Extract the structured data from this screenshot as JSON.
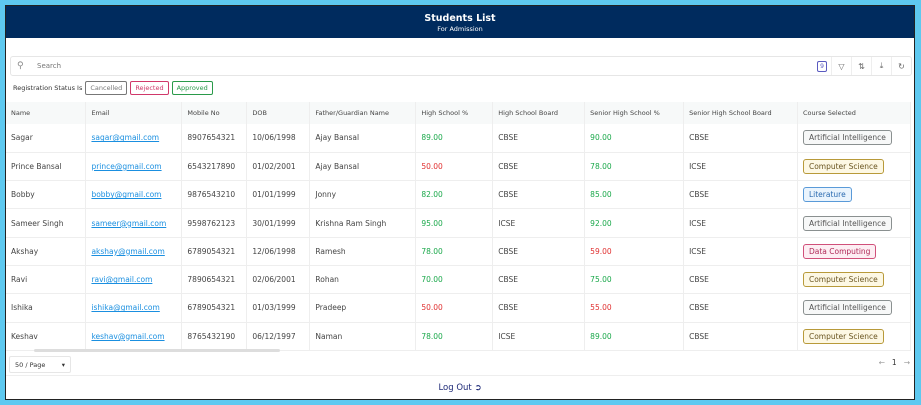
{
  "header": {
    "title": "Students List",
    "subtitle": "For Admission"
  },
  "search": {
    "placeholder": "Search",
    "column_count": "9"
  },
  "status": {
    "label": "Registration Status Is",
    "chips": [
      {
        "label": "Cancelled",
        "color": "#777777"
      },
      {
        "label": "Rejected",
        "color": "#d0386a"
      },
      {
        "label": "Approved",
        "color": "#2a9a4a"
      }
    ]
  },
  "columns": [
    "Name",
    "Email",
    "Mobile No",
    "DOB",
    "Father/Guardian Name",
    "High School %",
    "High School Board",
    "Senior High School %",
    "Senior High School Board",
    "Course Selected"
  ],
  "rows": [
    [
      "Sagar",
      "sagar@gmail.com",
      "8907654321",
      "10/06/1998",
      "Ajay Bansal",
      "89.00",
      "CBSE",
      "90.00",
      "CBSE",
      "Artificial Intelligence"
    ],
    [
      "Prince Bansal",
      "prince@gmail.com",
      "6543217890",
      "01/02/2001",
      "Ajay Bansal",
      "50.00",
      "CBSE",
      "78.00",
      "ICSE",
      "Computer Science"
    ],
    [
      "Bobby",
      "bobby@gmail.com",
      "9876543210",
      "01/01/1999",
      "Jonny",
      "82.00",
      "CBSE",
      "85.00",
      "CBSE",
      "Literature"
    ],
    [
      "Sameer Singh",
      "sameer@gmail.com",
      "9598762123",
      "30/01/1999",
      "Krishna Ram Singh",
      "95.00",
      "ICSE",
      "92.00",
      "ICSE",
      "Artificial Intelligence"
    ],
    [
      "Akshay",
      "akshay@gmail.com",
      "6789054321",
      "12/06/1998",
      "Ramesh",
      "78.00",
      "CBSE",
      "59.00",
      "ICSE",
      "Data Computing"
    ],
    [
      "Ravi",
      "ravi@gmail.com",
      "7890654321",
      "02/06/2001",
      "Rohan",
      "70.00",
      "CBSE",
      "75.00",
      "CBSE",
      "Computer Science"
    ],
    [
      "Ishika",
      "ishika@gmail.com",
      "6789054321",
      "01/03/1999",
      "Pradeep",
      "50.00",
      "CBSE",
      "55.00",
      "CBSE",
      "Artificial Intelligence"
    ],
    [
      "Keshav",
      "keshav@gmail.com",
      "8765432190",
      "06/12/1997",
      "Naman",
      "78.00",
      "ICSE",
      "89.00",
      "CBSE",
      "Computer Science"
    ]
  ],
  "course_colors": {
    "Artificial Intelligence": {
      "border": "#8a9090",
      "bg": "#f7f8f8",
      "text": "#555555"
    },
    "Computer Science": {
      "border": "#b89a3a",
      "bg": "#fdf8e4",
      "text": "#6a5520"
    },
    "Literature": {
      "border": "#5a9ad8",
      "bg": "#eaf4fd",
      "text": "#2a6ab0"
    },
    "Data Computing": {
      "border": "#d0507a",
      "bg": "#fdeef3",
      "text": "#b02a58"
    }
  },
  "pagination": {
    "page_size": "50 / Page",
    "current_page": "1"
  },
  "footer": {
    "logout": "Log Out"
  }
}
